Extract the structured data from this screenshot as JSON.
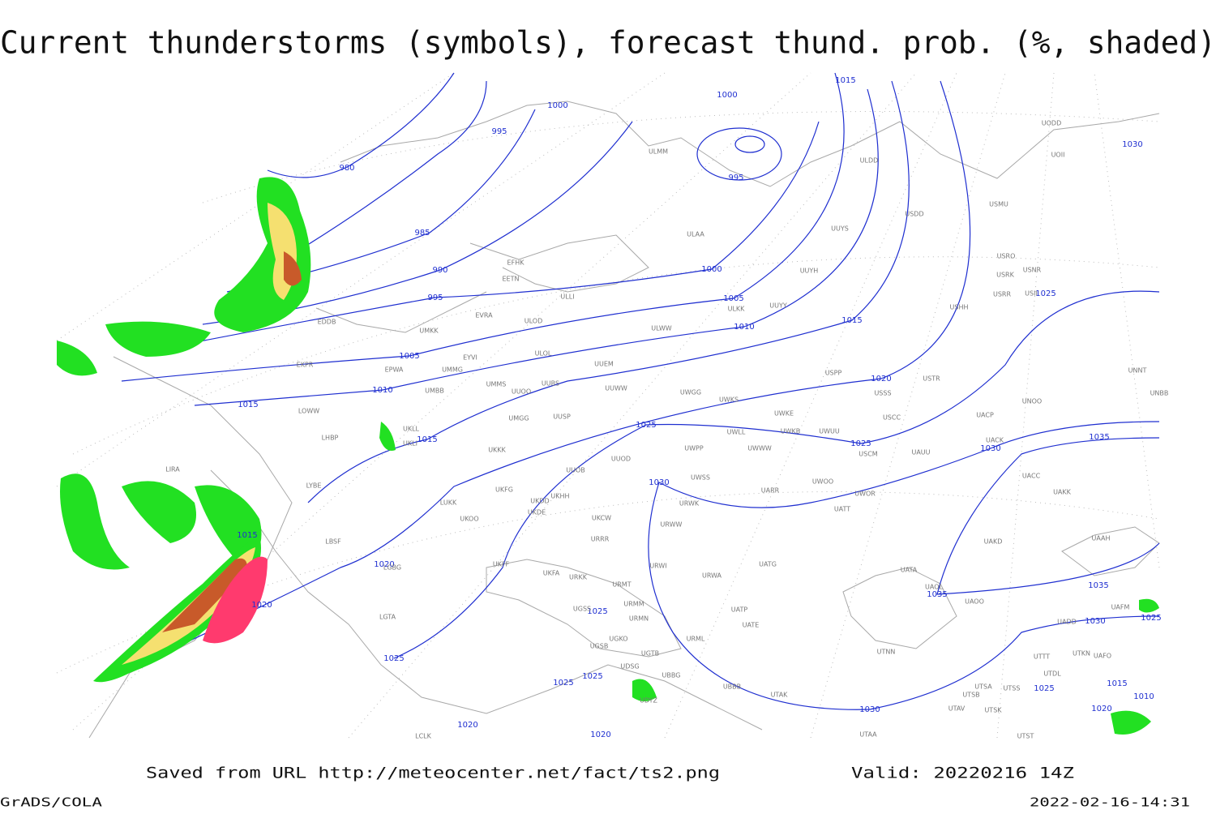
{
  "header": {
    "title": "Current thunderstorms (symbols), forecast thund. prob. (%, shaded)"
  },
  "footer": {
    "source": "Saved from URL http://meteocenter.net/fact/ts2.png",
    "valid": "Valid: 20220216 14Z",
    "software": "GrADS/COLA",
    "timestamp": "2022-02-16-14:31"
  },
  "isobar_labels": [
    1015,
    1000,
    1000,
    995,
    980,
    995,
    985,
    990,
    1000,
    995,
    1005,
    1025,
    1010,
    1015,
    1005,
    1010,
    1020,
    1015,
    1015,
    1025,
    1025,
    1030,
    1035,
    1030,
    1015,
    1020,
    1020,
    1025,
    1030,
    1025,
    1035,
    1035,
    1025,
    1025,
    1025,
    1015,
    1025,
    1010,
    1020,
    1030,
    1020,
    1020,
    1030
  ],
  "stations": [
    "ULMM",
    "ULDD",
    "USDD",
    "USMU",
    "ULAA",
    "UUYS",
    "USRO",
    "USRK",
    "USNR",
    "UUYH",
    "EFHK",
    "EETN",
    "USRR",
    "USII",
    "UUYY",
    "ULKK",
    "USHH",
    "ULLI",
    "EVRA",
    "ULOD",
    "UMKK",
    "EDDB",
    "ULWW",
    "ULOL",
    "EYVI",
    "UUEM",
    "UMMG",
    "EPWA",
    "EKPR",
    "UMMS",
    "UUBS",
    "UUOO",
    "UMBB",
    "UUWW",
    "UWGG",
    "UWKS",
    "USPP",
    "USTR",
    "USSS",
    "UNNT",
    "UNBB",
    "UNOO",
    "UWKE",
    "USCC",
    "UACP",
    "UKLL",
    "UUSP",
    "UMGG",
    "LOWW",
    "LHBP",
    "UWLL",
    "UWKB",
    "UWUU",
    "UACK",
    "UKLI",
    "UKKK",
    "UWPP",
    "UWWW",
    "USCM",
    "UAUU",
    "UUOD",
    "LIRA",
    "UUOB",
    "UWSS",
    "LYBE",
    "UACC",
    "UARR",
    "UWOO",
    "UWOR",
    "UAKK",
    "UKHH",
    "UKFG",
    "UKDD",
    "LUKK",
    "URWK",
    "UATT",
    "UKOO",
    "UKDE",
    "UKCW",
    "URWW",
    "LBSF",
    "URRR",
    "UAKD",
    "UAAH",
    "UKFF",
    "LGBG",
    "URWI",
    "UATG",
    "UKFA",
    "URKK",
    "URWA",
    "UATA",
    "URMT",
    "UAOL",
    "UAOO",
    "UAFM",
    "URMM",
    "UATP",
    "UGSS",
    "LGTA",
    "URMN",
    "UATE",
    "UADD",
    "UGKO",
    "URML",
    "UGSB",
    "UGTB",
    "UTNN",
    "UTTT",
    "UTKN",
    "UAFO",
    "UDSG",
    "UBBG",
    "UTDL",
    "UBBB",
    "UTSA",
    "UTSS",
    "UDYZ",
    "UTAK",
    "UTSB",
    "UTAV",
    "UTSK",
    "UTAA",
    "UTST",
    "LCLK",
    "UODD",
    "UOII"
  ]
}
